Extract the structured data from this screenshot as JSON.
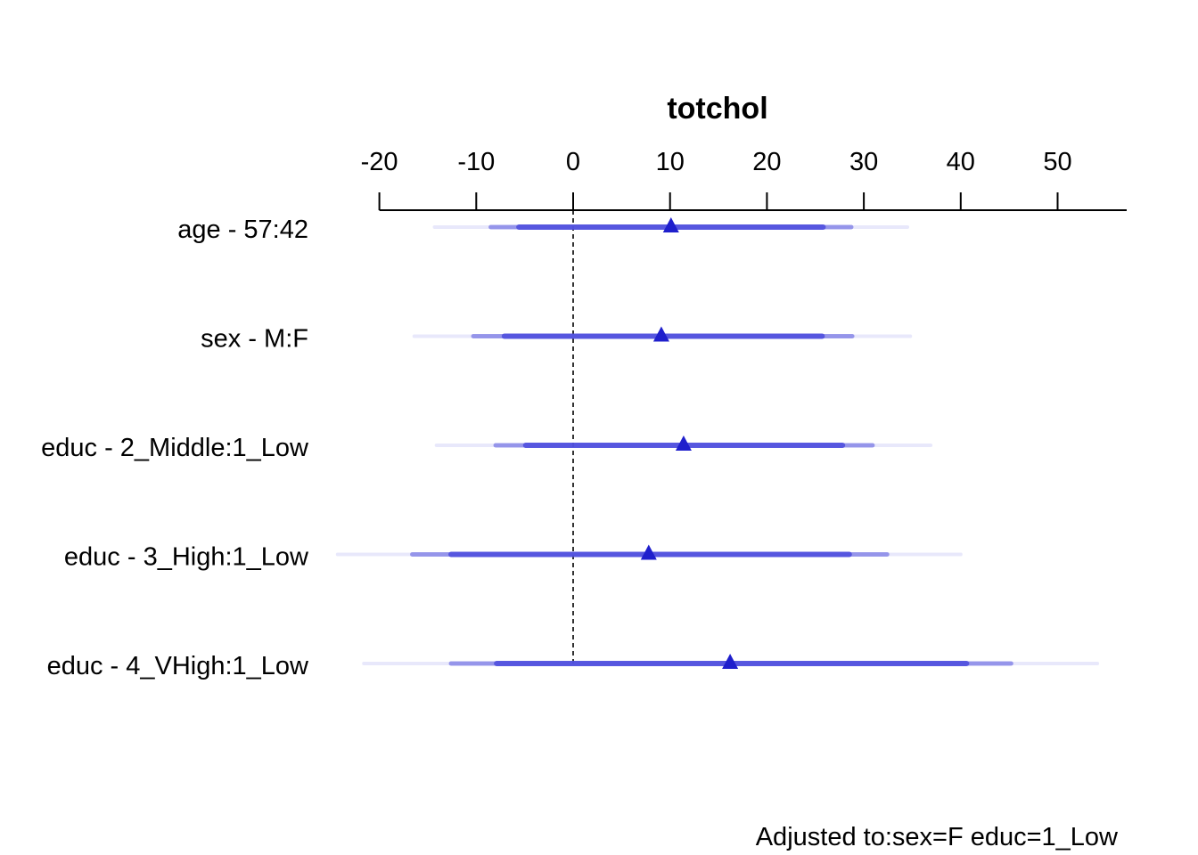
{
  "chart_data": {
    "type": "forest",
    "title": "totchol",
    "xlim": [
      -20,
      55
    ],
    "x_ticks": [
      -20,
      -10,
      0,
      10,
      20,
      30,
      40,
      50
    ],
    "reference_line": 0,
    "point_color": "#1f1fcc",
    "interval_color": "#5050dd",
    "rows": [
      {
        "label": "age - 57:42",
        "estimate": 10.1,
        "ci_inner": [
          -5.6,
          25.8
        ],
        "ci_mid": [
          -8.5,
          28.7
        ],
        "ci_outer": [
          -14.3,
          34.5
        ]
      },
      {
        "label": "sex - M:F",
        "estimate": 9.1,
        "ci_inner": [
          -7.1,
          25.7
        ],
        "ci_mid": [
          -10.3,
          28.8
        ],
        "ci_outer": [
          -16.4,
          34.8
        ]
      },
      {
        "label": "educ - 2_Middle:1_Low",
        "estimate": 11.4,
        "ci_inner": [
          -4.9,
          27.8
        ],
        "ci_mid": [
          -8.0,
          30.9
        ],
        "ci_outer": [
          -14.1,
          36.9
        ]
      },
      {
        "label": "educ - 3_High:1_Low",
        "estimate": 7.8,
        "ci_inner": [
          -12.6,
          28.5
        ],
        "ci_mid": [
          -16.6,
          32.4
        ],
        "ci_outer": [
          -24.3,
          40.0
        ]
      },
      {
        "label": "educ - 4_VHigh:1_Low",
        "estimate": 16.2,
        "ci_inner": [
          -7.9,
          40.6
        ],
        "ci_mid": [
          -12.6,
          45.2
        ],
        "ci_outer": [
          -21.6,
          54.1
        ]
      }
    ],
    "footnote": "Adjusted to:sex=F educ=1_Low"
  }
}
